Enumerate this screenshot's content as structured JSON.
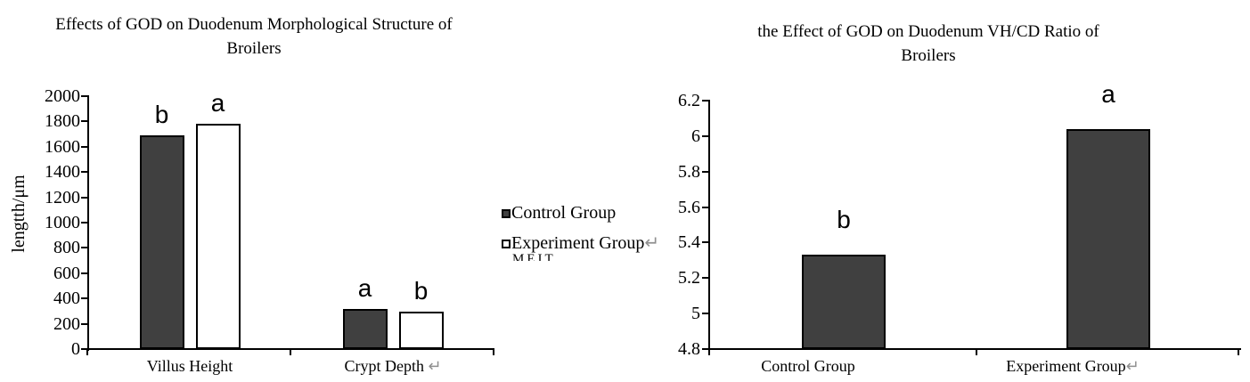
{
  "page": {
    "background": "#ffffff",
    "text_color": "#000000",
    "return_mark_color": "#909090"
  },
  "chart_data": [
    {
      "type": "bar",
      "title": "Effects of GOD on Duodenum Morphological Structure of Broilers",
      "title_lines": [
        "Effects of GOD on Duodenum Morphological Structure of",
        "Broilers"
      ],
      "ylabel": "lengtth/μm",
      "xlabel": "",
      "categories": [
        "Villus Height",
        "Crypt Depth"
      ],
      "category_suffix_marks": [
        "",
        " ↵"
      ],
      "series": [
        {
          "name": "Control Group",
          "fill": "#404040",
          "values": [
            1690,
            315
          ],
          "sig_letters": [
            "b",
            "a"
          ]
        },
        {
          "name": "Experiment Group",
          "fill": "#ffffff",
          "values": [
            1780,
            295
          ],
          "sig_letters": [
            "a",
            "b"
          ]
        }
      ],
      "ylim": [
        0,
        2000
      ],
      "ytick_step": 200,
      "ytick_labels": [
        "0",
        "200",
        "400",
        "600",
        "800",
        "1000",
        "1200",
        "1400",
        "1600",
        "1800",
        "2000"
      ],
      "grid": false,
      "legend": {
        "position": "right",
        "entries": [
          {
            "marker": "filled-square",
            "label": "Control Group",
            "return_mark": ""
          },
          {
            "marker": "open-square",
            "label": "Experiment Group",
            "return_mark": "↵"
          }
        ],
        "clipped_text": "MEIT"
      }
    },
    {
      "type": "bar",
      "title": "the Effect of GOD on Duodenum VH/CD Ratio of Broilers",
      "title_lines": [
        "the Effect of GOD on Duodenum VH/CD Ratio of",
        "Broilers"
      ],
      "ylabel": "",
      "xlabel": "",
      "categories": [
        "Control Group",
        "Experiment Group"
      ],
      "category_suffix_marks": [
        "",
        "↵"
      ],
      "series": [
        {
          "name": "",
          "fill": "#404040",
          "values": [
            5.33,
            6.04
          ],
          "sig_letters": [
            "b",
            "a"
          ]
        }
      ],
      "ylim": [
        4.8,
        6.2
      ],
      "ytick_step": 0.2,
      "ytick_labels": [
        "4.8",
        "5",
        "5.2",
        "5.4",
        "5.6",
        "5.8",
        "6",
        "6.2"
      ],
      "grid": false,
      "legend": null
    }
  ]
}
